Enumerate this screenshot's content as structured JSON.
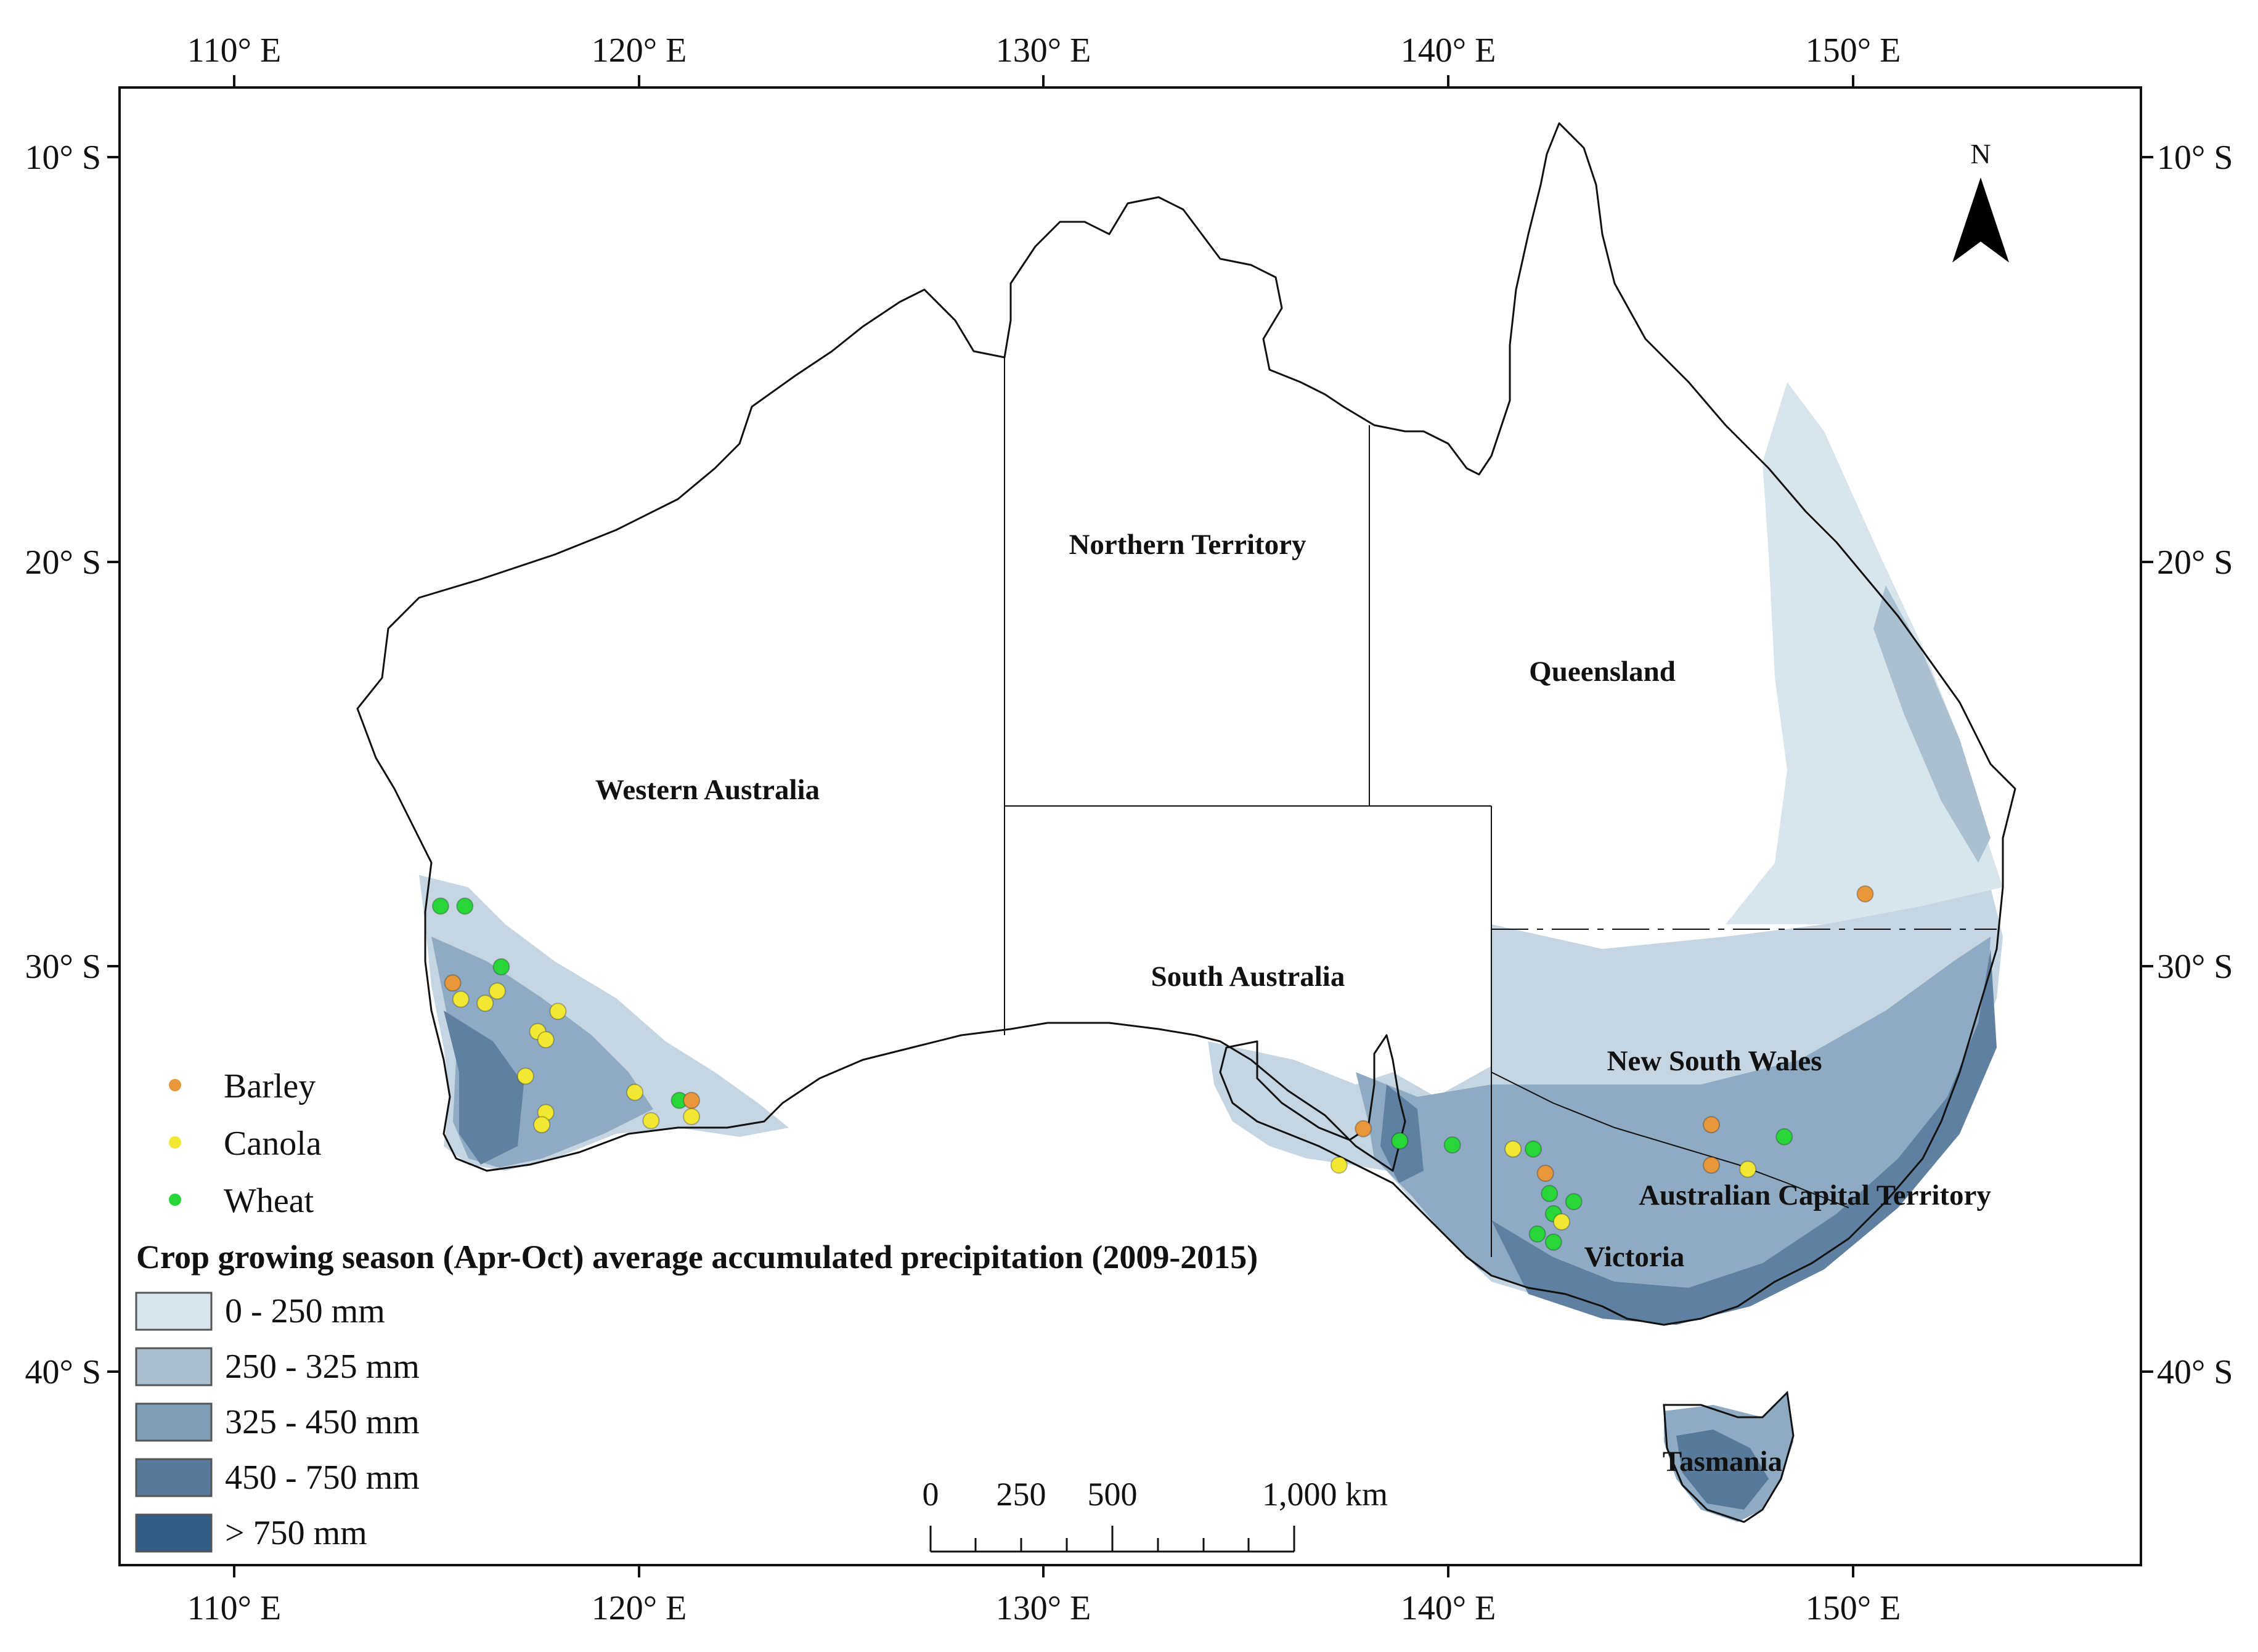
{
  "axes": {
    "longitude_ticks": [
      "110° E",
      "120° E",
      "130° E",
      "140° E",
      "150° E"
    ],
    "latitude_ticks": [
      "10° S",
      "20° S",
      "30° S",
      "40° S"
    ]
  },
  "north_arrow": {
    "label": "N",
    "icon": "north-arrow-icon"
  },
  "states": {
    "western_australia": "Western Australia",
    "northern_territory": "Northern Territory",
    "queensland": "Queensland",
    "south_australia": "South Australia",
    "new_south_wales": "New South Wales",
    "act": "Australian Capital Territory",
    "victoria": "Victoria",
    "tasmania": "Tasmania"
  },
  "crop_legend": [
    {
      "label": "Barley",
      "color": "#e8973a"
    },
    {
      "label": "Canola",
      "color": "#f2e733"
    },
    {
      "label": "Wheat",
      "color": "#29d63a"
    }
  ],
  "precip_legend": {
    "title": "Crop growing season (Apr-Oct) average accumulated precipitation (2009-2015)",
    "classes": [
      {
        "label": "0 - 250 mm",
        "color": "#d9e5ec"
      },
      {
        "label": "250 - 325 mm",
        "color": "#aac0d1"
      },
      {
        "label": "325 - 450 mm",
        "color": "#7f9db6"
      },
      {
        "label": "450 - 750 mm",
        "color": "#57799a"
      },
      {
        "label": "> 750 mm",
        "color": "#325d84"
      }
    ]
  },
  "scale_bar": {
    "labels": [
      "0",
      "250",
      "500",
      "1,000 km"
    ]
  },
  "sites": [
    {
      "crop": "Wheat",
      "lon": 115.1,
      "lat": -28.5
    },
    {
      "crop": "Wheat",
      "lon": 115.7,
      "lat": -28.5
    },
    {
      "crop": "Wheat",
      "lon": 116.6,
      "lat": -30.0
    },
    {
      "crop": "Barley",
      "lon": 115.4,
      "lat": -30.4
    },
    {
      "crop": "Canola",
      "lon": 115.6,
      "lat": -30.8
    },
    {
      "crop": "Canola",
      "lon": 116.2,
      "lat": -30.9
    },
    {
      "crop": "Canola",
      "lon": 116.5,
      "lat": -30.6
    },
    {
      "crop": "Canola",
      "lon": 117.5,
      "lat": -31.6
    },
    {
      "crop": "Canola",
      "lon": 117.7,
      "lat": -31.8
    },
    {
      "crop": "Canola",
      "lon": 118.0,
      "lat": -31.1
    },
    {
      "crop": "Canola",
      "lon": 117.2,
      "lat": -32.7
    },
    {
      "crop": "Canola",
      "lon": 117.7,
      "lat": -33.6
    },
    {
      "crop": "Canola",
      "lon": 117.6,
      "lat": -33.9
    },
    {
      "crop": "Canola",
      "lon": 119.9,
      "lat": -33.1
    },
    {
      "crop": "Canola",
      "lon": 120.3,
      "lat": -33.8
    },
    {
      "crop": "Wheat",
      "lon": 121.0,
      "lat": -33.3
    },
    {
      "crop": "Barley",
      "lon": 121.3,
      "lat": -33.3
    },
    {
      "crop": "Canola",
      "lon": 121.3,
      "lat": -33.7
    },
    {
      "crop": "Barley",
      "lon": 137.9,
      "lat": -34.0
    },
    {
      "crop": "Canola",
      "lon": 137.3,
      "lat": -34.9
    },
    {
      "crop": "Wheat",
      "lon": 138.8,
      "lat": -34.3
    },
    {
      "crop": "Wheat",
      "lon": 140.1,
      "lat": -34.4
    },
    {
      "crop": "Canola",
      "lon": 141.6,
      "lat": -34.5
    },
    {
      "crop": "Wheat",
      "lon": 142.1,
      "lat": -34.5
    },
    {
      "crop": "Barley",
      "lon": 142.4,
      "lat": -35.1
    },
    {
      "crop": "Wheat",
      "lon": 142.5,
      "lat": -35.6
    },
    {
      "crop": "Wheat",
      "lon": 143.1,
      "lat": -35.8
    },
    {
      "crop": "Wheat",
      "lon": 142.6,
      "lat": -36.1
    },
    {
      "crop": "Canola",
      "lon": 142.8,
      "lat": -36.3
    },
    {
      "crop": "Wheat",
      "lon": 142.2,
      "lat": -36.6
    },
    {
      "crop": "Wheat",
      "lon": 142.6,
      "lat": -36.8
    },
    {
      "crop": "Barley",
      "lon": 150.3,
      "lat": -28.2
    },
    {
      "crop": "Barley",
      "lon": 146.5,
      "lat": -33.9
    },
    {
      "crop": "Barley",
      "lon": 146.5,
      "lat": -34.9
    },
    {
      "crop": "Canola",
      "lon": 147.4,
      "lat": -35.0
    },
    {
      "crop": "Wheat",
      "lon": 148.3,
      "lat": -34.2
    }
  ]
}
